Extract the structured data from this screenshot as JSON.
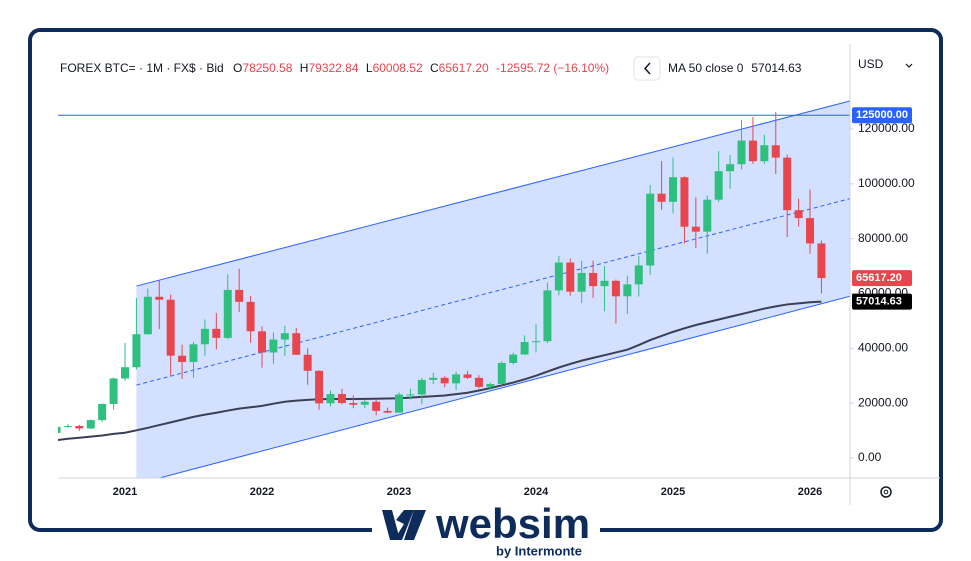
{
  "chart_data": {
    "type": "candlestick",
    "header": {
      "symbol": "FOREX BTC= · 1M · FX$ · Bid",
      "o": "O",
      "open": "78250.58",
      "h": "H",
      "high": "79322.84",
      "l": "L",
      "low": "60008.52",
      "c": "C",
      "close": "65617.20",
      "change": "-12595.72 (−16.10%)"
    },
    "currency": "USD",
    "categories": [
      null,
      null,
      null,
      null,
      null,
      null,
      "2021",
      null,
      null,
      null,
      null,
      null,
      null,
      null,
      null,
      null,
      null,
      null,
      "2022",
      null,
      null,
      null,
      null,
      null,
      null,
      null,
      null,
      null,
      null,
      null,
      "2023",
      null,
      null,
      null,
      null,
      null,
      null,
      null,
      null,
      null,
      null,
      null,
      "2024",
      null,
      null,
      null,
      null,
      null,
      null,
      null,
      null,
      null,
      null,
      null,
      "2025",
      null,
      null,
      null,
      null,
      null,
      null,
      null,
      null,
      null,
      null,
      null,
      "2026",
      null
    ],
    "open": [
      9140,
      11350,
      11660,
      10780,
      13800,
      19700,
      28990,
      33110,
      45140,
      58800,
      57720,
      37300,
      35040,
      41460,
      47100,
      43820,
      61300,
      56950,
      46200,
      38480,
      43190,
      45510,
      37640,
      31790,
      19940,
      23310,
      20050,
      19420,
      20490,
      17170,
      16540,
      23140,
      23150,
      28480,
      29250,
      27220,
      30480,
      29230,
      25940,
      26970,
      34650,
      37720,
      42280,
      42580,
      61130,
      71290,
      60640,
      67490,
      62680,
      64620,
      58970,
      63330,
      70220,
      96410,
      93430,
      102400,
      84350,
      82550,
      94200,
      104600,
      107140,
      115760,
      108240,
      114050,
      109550,
      90380,
      87500,
      78250.58
    ],
    "high": [
      11440,
      12470,
      12080,
      14100,
      19900,
      29300,
      41950,
      58350,
      61780,
      64850,
      59600,
      41330,
      42400,
      50500,
      52920,
      67000,
      69000,
      59100,
      47990,
      45800,
      48190,
      47440,
      40000,
      31980,
      24660,
      25200,
      22800,
      21080,
      21480,
      18400,
      23950,
      25250,
      29200,
      31050,
      29820,
      31440,
      31800,
      30200,
      27480,
      35200,
      38420,
      44700,
      48970,
      63970,
      73750,
      72720,
      71950,
      71980,
      70000,
      65100,
      66500,
      73600,
      99600,
      108300,
      109600,
      102700,
      95000,
      95700,
      111900,
      110500,
      123200,
      124400,
      117900,
      126200,
      110600,
      94600,
      97900,
      79322.84
    ],
    "low": [
      9000,
      10990,
      9880,
      10540,
      13220,
      17600,
      28150,
      32300,
      45000,
      47000,
      30000,
      28800,
      29300,
      37330,
      39600,
      43300,
      53250,
      42000,
      32950,
      34300,
      37200,
      37600,
      26700,
      17600,
      18780,
      19600,
      18150,
      18200,
      15500,
      16260,
      16500,
      21350,
      19560,
      26940,
      25810,
      24790,
      28860,
      25350,
      24900,
      26560,
      34100,
      37650,
      38500,
      41880,
      59300,
      59200,
      56550,
      58400,
      53500,
      49050,
      52550,
      58900,
      66800,
      90500,
      89200,
      78200,
      76600,
      74500,
      93400,
      98200,
      105300,
      107300,
      107300,
      103600,
      80600,
      84400,
      74500,
      60008.52
    ],
    "close": [
      11350,
      11660,
      10780,
      13800,
      19700,
      28990,
      33110,
      45140,
      58800,
      57720,
      37300,
      35040,
      41460,
      47100,
      43820,
      61300,
      56950,
      46200,
      38480,
      43190,
      45510,
      37640,
      31790,
      19940,
      23310,
      20050,
      19420,
      20490,
      17170,
      16540,
      23140,
      23150,
      28480,
      29250,
      27220,
      30480,
      29230,
      25940,
      26970,
      34650,
      37720,
      42280,
      42580,
      61130,
      71290,
      60640,
      67490,
      62680,
      64620,
      58970,
      63330,
      70220,
      96410,
      93430,
      102400,
      84350,
      82550,
      94200,
      104600,
      107140,
      115760,
      108240,
      114050,
      109550,
      90380,
      87500,
      78250.58,
      65617.2
    ],
    "up_color": "#2fbf7f",
    "down_color": "#e8464f",
    "ma": {
      "name": "MA 50 close 0",
      "color": "#3b3f55",
      "values": [
        6500,
        7000,
        7400,
        7800,
        8200,
        8800,
        9200,
        10100,
        11000,
        12000,
        13000,
        14000,
        15000,
        15800,
        16500,
        17300,
        18000,
        18500,
        19000,
        19800,
        20500,
        20900,
        21200,
        21400,
        21500,
        21500,
        21500,
        21550,
        21600,
        21700,
        21800,
        22000,
        22300,
        22500,
        22800,
        23300,
        23800,
        24600,
        25500,
        26500,
        27500,
        28700,
        30000,
        31500,
        33000,
        34300,
        35500,
        36500,
        37500,
        38500,
        39500,
        41200,
        43000,
        44500,
        46000,
        47300,
        48500,
        49500,
        50500,
        51500,
        52500,
        53500,
        54500,
        55300,
        56000,
        56400,
        56800,
        57014.63
      ]
    },
    "channel": {
      "x": [
        7,
        69.5
      ],
      "upper": [
        62700,
        130200
      ],
      "lower": [
        -9500,
        59000
      ],
      "color": "#2962ff"
    },
    "hline": {
      "value": 125000,
      "label": "125000.00",
      "color": "#2962ff"
    },
    "ylim": [
      -7300,
      148800
    ],
    "yticks": [
      {
        "value": 0,
        "label": "0.00"
      },
      {
        "value": 20000,
        "label": "20000.00"
      },
      {
        "value": 40000,
        "label": "40000.00"
      },
      {
        "value": 60000,
        "label": "60000.00"
      },
      {
        "value": 80000,
        "label": "80000.00"
      },
      {
        "value": 100000,
        "label": "100000.00"
      },
      {
        "value": 120000,
        "label": "120000.00"
      }
    ],
    "grid": false,
    "brand": {
      "name": "websim",
      "tagline": "by Intermonte"
    }
  }
}
